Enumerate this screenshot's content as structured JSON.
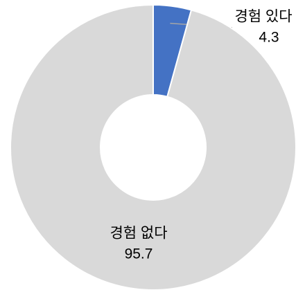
{
  "chart_data": {
    "type": "pie",
    "donut": true,
    "categories": [
      "경험 있다",
      "경험 없다"
    ],
    "values": [
      4.3,
      95.7
    ],
    "colors": [
      "#4472c4",
      "#d9d9d9"
    ]
  }
}
